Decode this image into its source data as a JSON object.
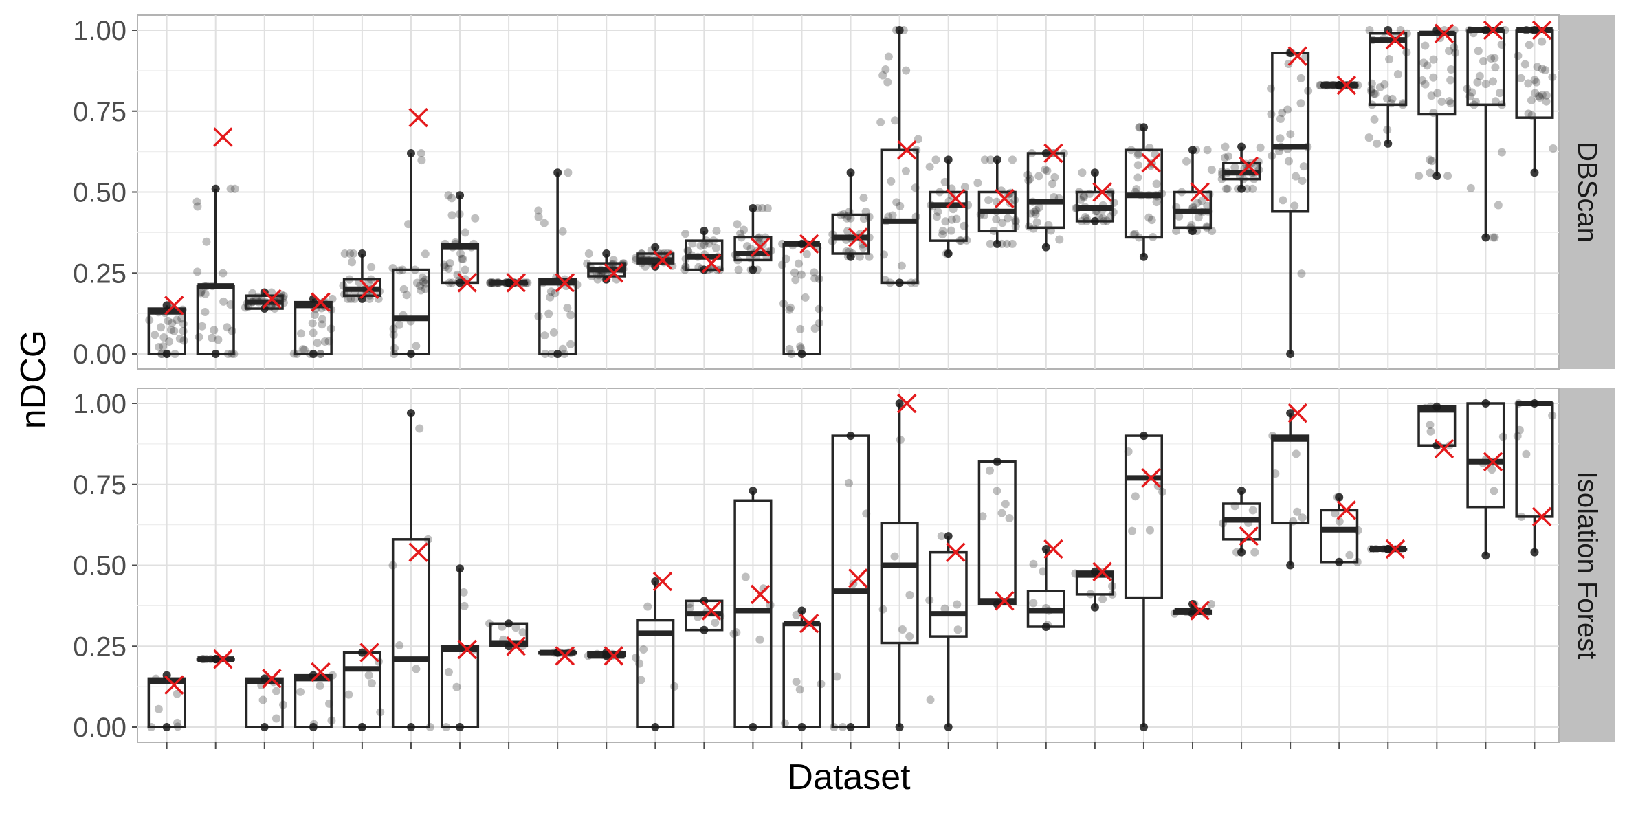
{
  "chart_data": {
    "type": "box",
    "xlabel": "Dataset",
    "ylabel": "nDCG",
    "ylim": [
      0,
      1
    ],
    "yticks": [
      "0.00",
      "0.25",
      "0.50",
      "0.75",
      "1.00"
    ],
    "n_datasets": 29,
    "grid": true,
    "mean_marker": "red x",
    "colors": {
      "mean": "#e41a1c",
      "box": "#262626",
      "point": "#1a1a1a",
      "strip": "#bfbfbf",
      "grid": "#e0e0e0"
    },
    "panels": [
      {
        "name": "DBScan",
        "boxes": [
          {
            "min": 0,
            "q1": 0,
            "median": 0.13,
            "q3": 0.14,
            "max": 0.15,
            "mean": 0.15
          },
          {
            "min": 0,
            "q1": 0,
            "median": 0.21,
            "q3": 0.21,
            "max": 0.51,
            "mean": 0.67
          },
          {
            "min": 0.14,
            "q1": 0.14,
            "median": 0.16,
            "q3": 0.18,
            "max": 0.19,
            "mean": 0.17
          },
          {
            "min": 0,
            "q1": 0,
            "median": 0.15,
            "q3": 0.16,
            "max": 0.17,
            "mean": 0.16
          },
          {
            "min": 0.17,
            "q1": 0.18,
            "median": 0.2,
            "q3": 0.23,
            "max": 0.31,
            "mean": 0.2
          },
          {
            "min": 0,
            "q1": 0,
            "median": 0.11,
            "q3": 0.26,
            "max": 0.62,
            "mean": 0.73
          },
          {
            "min": 0.22,
            "q1": 0.22,
            "median": 0.33,
            "q3": 0.34,
            "max": 0.49,
            "mean": 0.22
          },
          {
            "min": 0.22,
            "q1": 0.22,
            "median": 0.22,
            "q3": 0.22,
            "max": 0.22,
            "mean": 0.22
          },
          {
            "min": 0,
            "q1": 0,
            "median": 0.22,
            "q3": 0.23,
            "max": 0.56,
            "mean": 0.22
          },
          {
            "min": 0.23,
            "q1": 0.24,
            "median": 0.26,
            "q3": 0.28,
            "max": 0.31,
            "mean": 0.25
          },
          {
            "min": 0.27,
            "q1": 0.28,
            "median": 0.29,
            "q3": 0.31,
            "max": 0.33,
            "mean": 0.29
          },
          {
            "min": 0.26,
            "q1": 0.26,
            "median": 0.3,
            "q3": 0.35,
            "max": 0.38,
            "mean": 0.28
          },
          {
            "min": 0.26,
            "q1": 0.29,
            "median": 0.31,
            "q3": 0.36,
            "max": 0.45,
            "mean": 0.33
          },
          {
            "min": 0,
            "q1": 0,
            "median": 0.34,
            "q3": 0.34,
            "max": 0.34,
            "mean": 0.34
          },
          {
            "min": 0.3,
            "q1": 0.31,
            "median": 0.36,
            "q3": 0.43,
            "max": 0.56,
            "mean": 0.36
          },
          {
            "min": 0.22,
            "q1": 0.22,
            "median": 0.41,
            "q3": 0.63,
            "max": 1.0,
            "mean": 0.63
          },
          {
            "min": 0.31,
            "q1": 0.35,
            "median": 0.46,
            "q3": 0.5,
            "max": 0.6,
            "mean": 0.48
          },
          {
            "min": 0.34,
            "q1": 0.38,
            "median": 0.44,
            "q3": 0.5,
            "max": 0.6,
            "mean": 0.48
          },
          {
            "min": 0.33,
            "q1": 0.39,
            "median": 0.47,
            "q3": 0.62,
            "max": 0.62,
            "mean": 0.62
          },
          {
            "min": 0.41,
            "q1": 0.41,
            "median": 0.45,
            "q3": 0.5,
            "max": 0.56,
            "mean": 0.5
          },
          {
            "min": 0.3,
            "q1": 0.36,
            "median": 0.49,
            "q3": 0.63,
            "max": 0.7,
            "mean": 0.59
          },
          {
            "min": 0.38,
            "q1": 0.39,
            "median": 0.44,
            "q3": 0.5,
            "max": 0.63,
            "mean": 0.5
          },
          {
            "min": 0.51,
            "q1": 0.54,
            "median": 0.56,
            "q3": 0.59,
            "max": 0.64,
            "mean": 0.58
          },
          {
            "min": 0,
            "q1": 0.44,
            "median": 0.64,
            "q3": 0.93,
            "max": 0.93,
            "mean": 0.92
          },
          {
            "min": 0.83,
            "q1": 0.83,
            "median": 0.83,
            "q3": 0.83,
            "max": 0.83,
            "mean": 0.83
          },
          {
            "min": 0.65,
            "q1": 0.77,
            "median": 0.97,
            "q3": 0.99,
            "max": 1.0,
            "mean": 0.97
          },
          {
            "min": 0.55,
            "q1": 0.74,
            "median": 0.99,
            "q3": 0.99,
            "max": 1.0,
            "mean": 0.99
          },
          {
            "min": 0.36,
            "q1": 0.77,
            "median": 1.0,
            "q3": 1.0,
            "max": 1.0,
            "mean": 1.0
          },
          {
            "min": 0.56,
            "q1": 0.73,
            "median": 1.0,
            "q3": 1.0,
            "max": 1.0,
            "mean": 1.0
          }
        ]
      },
      {
        "name": "Isolation Forest",
        "boxes": [
          {
            "min": 0,
            "q1": 0,
            "median": 0.14,
            "q3": 0.15,
            "max": 0.16,
            "mean": 0.13
          },
          {
            "min": 0.21,
            "q1": 0.21,
            "median": 0.21,
            "q3": 0.21,
            "max": 0.21,
            "mean": 0.21
          },
          {
            "min": 0,
            "q1": 0,
            "median": 0.14,
            "q3": 0.15,
            "max": 0.15,
            "mean": 0.15
          },
          {
            "min": 0,
            "q1": 0,
            "median": 0.15,
            "q3": 0.16,
            "max": 0.16,
            "mean": 0.17
          },
          {
            "min": 0,
            "q1": 0,
            "median": 0.18,
            "q3": 0.23,
            "max": 0.23,
            "mean": 0.23
          },
          {
            "min": 0,
            "q1": 0,
            "median": 0.21,
            "q3": 0.58,
            "max": 0.97,
            "mean": 0.54
          },
          {
            "min": 0,
            "q1": 0,
            "median": 0.24,
            "q3": 0.25,
            "max": 0.49,
            "mean": 0.24
          },
          {
            "min": 0.25,
            "q1": 0.25,
            "median": 0.26,
            "q3": 0.32,
            "max": 0.32,
            "mean": 0.25
          },
          {
            "min": 0.23,
            "q1": 0.23,
            "median": 0.23,
            "q3": 0.23,
            "max": 0.23,
            "mean": 0.22
          },
          {
            "min": 0.22,
            "q1": 0.22,
            "median": 0.22,
            "q3": 0.23,
            "max": 0.23,
            "mean": 0.22
          },
          {
            "min": 0,
            "q1": 0,
            "median": 0.29,
            "q3": 0.33,
            "max": 0.45,
            "mean": 0.45
          },
          {
            "min": 0.3,
            "q1": 0.3,
            "median": 0.35,
            "q3": 0.39,
            "max": 0.39,
            "mean": 0.36
          },
          {
            "min": 0,
            "q1": 0,
            "median": 0.36,
            "q3": 0.7,
            "max": 0.73,
            "mean": 0.41
          },
          {
            "min": 0,
            "q1": 0,
            "median": 0.32,
            "q3": 0.32,
            "max": 0.36,
            "mean": 0.32
          },
          {
            "min": 0,
            "q1": 0,
            "median": 0.42,
            "q3": 0.9,
            "max": 0.9,
            "mean": 0.46
          },
          {
            "min": 0,
            "q1": 0.26,
            "median": 0.5,
            "q3": 0.63,
            "max": 1.0,
            "mean": 1.0
          },
          {
            "min": 0,
            "q1": 0.28,
            "median": 0.35,
            "q3": 0.54,
            "max": 0.59,
            "mean": 0.54
          },
          {
            "min": 0.38,
            "q1": 0.38,
            "median": 0.39,
            "q3": 0.82,
            "max": 0.82,
            "mean": 0.39
          },
          {
            "min": 0.31,
            "q1": 0.31,
            "median": 0.36,
            "q3": 0.42,
            "max": 0.55,
            "mean": 0.55
          },
          {
            "min": 0.37,
            "q1": 0.41,
            "median": 0.47,
            "q3": 0.48,
            "max": 0.48,
            "mean": 0.48
          },
          {
            "min": 0,
            "q1": 0.4,
            "median": 0.77,
            "q3": 0.9,
            "max": 0.9,
            "mean": 0.77
          },
          {
            "min": 0.35,
            "q1": 0.35,
            "median": 0.36,
            "q3": 0.36,
            "max": 0.38,
            "mean": 0.36
          },
          {
            "min": 0.54,
            "q1": 0.58,
            "median": 0.64,
            "q3": 0.69,
            "max": 0.73,
            "mean": 0.59
          },
          {
            "min": 0.5,
            "q1": 0.63,
            "median": 0.89,
            "q3": 0.9,
            "max": 0.97,
            "mean": 0.97
          },
          {
            "min": 0.51,
            "q1": 0.51,
            "median": 0.61,
            "q3": 0.67,
            "max": 0.71,
            "mean": 0.67
          },
          {
            "min": 0.55,
            "q1": 0.55,
            "median": 0.55,
            "q3": 0.55,
            "max": 0.55,
            "mean": 0.55
          },
          {
            "min": 0.87,
            "q1": 0.87,
            "median": 0.98,
            "q3": 0.99,
            "max": 0.99,
            "mean": 0.86
          },
          {
            "min": 0.53,
            "q1": 0.68,
            "median": 0.82,
            "q3": 1.0,
            "max": 1.0,
            "mean": 0.82
          },
          {
            "min": 0.54,
            "q1": 0.65,
            "median": 1.0,
            "q3": 1.0,
            "max": 1.0,
            "mean": 0.65
          }
        ]
      }
    ]
  }
}
